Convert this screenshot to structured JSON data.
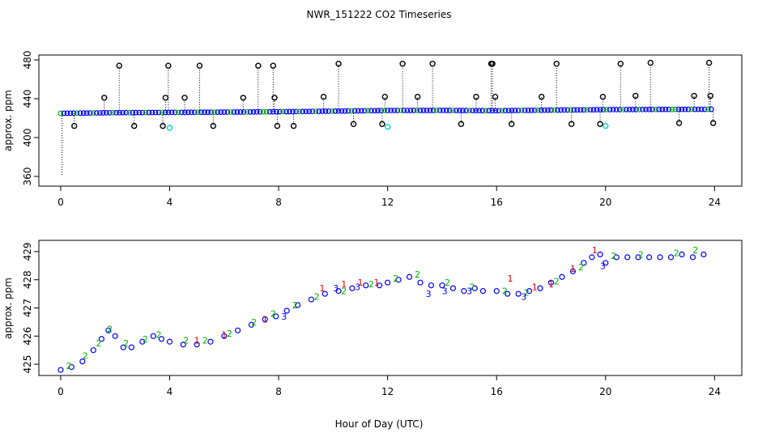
{
  "title": "NWR_151222  CO2 Timeseries",
  "xlabel": "Hour of Day (UTC)",
  "colors": {
    "black": "#000000",
    "blue": "#0000ff",
    "green": "#00b000",
    "red": "#dd0000",
    "cyan": "#00d0d0"
  },
  "chart_data": [
    {
      "type": "scatter",
      "ylabel": "approx. ppm",
      "xlim": [
        -0.8,
        25.0
      ],
      "ylim": [
        350,
        485
      ],
      "x_ticks": [
        0,
        4,
        8,
        12,
        16,
        20,
        24
      ],
      "y_ticks": [
        360,
        400,
        440,
        480
      ],
      "series": [
        {
          "color": "blue",
          "kind": "dense-line",
          "x": [
            0,
            2,
            4,
            6,
            8,
            10,
            12,
            14,
            16,
            18,
            20,
            22,
            24
          ],
          "y": [
            425,
            425.6,
            425.9,
            426.2,
            426.6,
            427.2,
            427.9,
            428.0,
            427.7,
            428.3,
            428.8,
            429.0,
            429.1
          ]
        },
        {
          "color": "black",
          "kind": "spikes",
          "x": [
            0.05,
            0.5,
            1.6,
            2.15,
            2.7,
            3.75,
            3.85,
            3.95,
            4.55,
            5.1,
            5.6,
            6.7,
            7.25,
            7.8,
            7.85,
            7.95,
            8.55,
            9.65,
            10.2,
            10.75,
            11.8,
            11.9,
            12.55,
            13.1,
            13.65,
            14.7,
            15.25,
            15.8,
            15.85,
            15.95,
            16.55,
            17.65,
            18.2,
            18.75,
            19.8,
            19.9,
            20.55,
            21.1,
            21.65,
            22.7,
            23.25,
            23.8,
            23.85,
            23.95
          ],
          "y": [
            360,
            412,
            441,
            474,
            412,
            412,
            441,
            474,
            441,
            474,
            412,
            441,
            474,
            474,
            441,
            412,
            412,
            442,
            476,
            414,
            414,
            442,
            476,
            442,
            476,
            414,
            442,
            476,
            476,
            442,
            414,
            442,
            476,
            414,
            414,
            442,
            476,
            443,
            477,
            415,
            443,
            477,
            443,
            415
          ]
        },
        {
          "color": "cyan",
          "kind": "points",
          "x": [
            4.0,
            12.0,
            20.0
          ],
          "y": [
            410,
            411,
            412
          ]
        }
      ]
    },
    {
      "type": "scatter",
      "ylabel": "approx. ppm",
      "xlim": [
        -0.8,
        25.0
      ],
      "ylim": [
        424.6,
        429.4
      ],
      "x_ticks": [
        0,
        4,
        8,
        12,
        16,
        20,
        24
      ],
      "y_ticks": [
        425,
        426,
        427,
        428,
        429
      ],
      "series": [
        {
          "color": "blue",
          "marker": "circle",
          "x": [
            0.0,
            0.4,
            0.8,
            1.2,
            1.5,
            1.75,
            2.0,
            2.3,
            2.6,
            3.0,
            3.4,
            3.7,
            4.0,
            4.5,
            5.0,
            5.5,
            6.0,
            6.5,
            7.0,
            7.5,
            7.9,
            8.3,
            8.7,
            9.2,
            9.7,
            10.2,
            10.7,
            11.2,
            11.7,
            12.0,
            12.4,
            12.8,
            13.2,
            13.6,
            14.0,
            14.4,
            14.8,
            15.2,
            15.5,
            16.0,
            16.4,
            16.8,
            17.2,
            17.6,
            18.0,
            18.4,
            18.8,
            19.2,
            19.5,
            19.8,
            20.0,
            20.4,
            20.8,
            21.2,
            21.6,
            22.0,
            22.4,
            22.8,
            23.2,
            23.6
          ],
          "y": [
            424.8,
            424.9,
            425.1,
            425.5,
            425.9,
            426.2,
            426.0,
            425.6,
            425.6,
            425.8,
            426.0,
            425.9,
            425.8,
            425.7,
            425.7,
            425.8,
            426.0,
            426.2,
            426.4,
            426.6,
            426.7,
            426.9,
            427.1,
            427.3,
            427.5,
            427.6,
            427.7,
            427.8,
            427.8,
            427.9,
            428.0,
            428.1,
            427.9,
            427.8,
            427.8,
            427.7,
            427.6,
            427.7,
            427.6,
            427.6,
            427.5,
            427.5,
            427.6,
            427.7,
            427.9,
            428.1,
            428.3,
            428.6,
            428.8,
            428.9,
            428.6,
            428.8,
            428.8,
            428.8,
            428.8,
            428.8,
            428.8,
            428.9,
            428.8,
            428.9
          ]
        },
        {
          "color": "green",
          "marker": "label",
          "label": "2",
          "x": [
            0.3,
            0.9,
            1.4,
            1.8,
            2.4,
            3.1,
            3.6,
            4.6,
            5.3,
            6.2,
            7.1,
            7.8,
            8.6,
            9.4,
            10.4,
            11.4,
            12.3,
            13.1,
            14.2,
            15.1,
            16.3,
            17.1,
            18.2,
            19.1,
            20.3,
            21.3,
            22.6,
            23.3
          ],
          "y": [
            424.95,
            425.3,
            425.75,
            426.25,
            425.75,
            425.9,
            426.05,
            425.85,
            425.85,
            426.1,
            426.5,
            426.8,
            427.1,
            427.4,
            427.6,
            427.85,
            428.05,
            428.2,
            427.9,
            427.75,
            427.6,
            427.55,
            427.95,
            428.45,
            428.85,
            428.9,
            428.95,
            429.05
          ]
        },
        {
          "color": "red",
          "marker": "label",
          "label": "1",
          "x": [
            5.0,
            6.0,
            7.5,
            9.6,
            10.4,
            11.0,
            11.6,
            16.5,
            17.4,
            18.0,
            18.8,
            19.6
          ],
          "y": [
            425.85,
            426.05,
            426.6,
            427.7,
            427.85,
            427.9,
            427.9,
            428.05,
            427.75,
            427.85,
            428.4,
            429.05
          ]
        },
        {
          "color": "blue",
          "marker": "label",
          "label": "3",
          "x": [
            8.2,
            10.1,
            10.9,
            13.5,
            14.1,
            15.0,
            17.0,
            19.9
          ],
          "y": [
            426.7,
            427.7,
            427.75,
            427.5,
            427.6,
            427.6,
            427.4,
            428.5
          ]
        }
      ]
    }
  ]
}
